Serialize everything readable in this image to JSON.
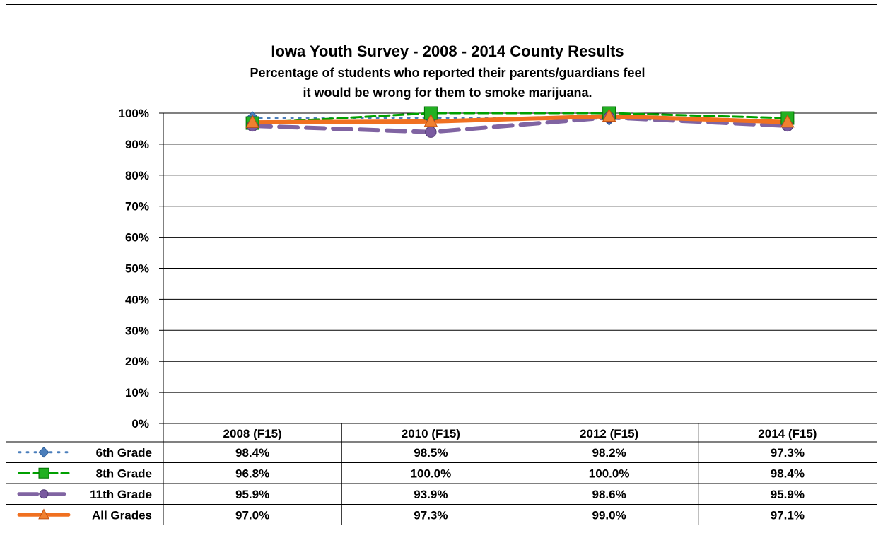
{
  "chart_data": {
    "type": "line",
    "title": "Iowa Youth Survey - 2008 - 2014 County Results",
    "subtitle_line1": "Percentage of students who reported their parents/guardians feel",
    "subtitle_line2": "it would be wrong for them to smoke marijuana.",
    "categories": [
      "2008 (F15)",
      "2010 (F15)",
      "2012 (F15)",
      "2014 (F15)"
    ],
    "y_ticks": [
      "0%",
      "10%",
      "20%",
      "30%",
      "40%",
      "50%",
      "60%",
      "70%",
      "80%",
      "90%",
      "100%"
    ],
    "ylim": [
      0,
      100
    ],
    "grid": true,
    "legend": "data-table",
    "series": [
      {
        "name": "6th Grade",
        "values": [
          98.4,
          98.5,
          98.2,
          97.3
        ],
        "labels": [
          "98.4%",
          "98.5%",
          "98.2%",
          "97.3%"
        ],
        "color": "#4a7ebb",
        "dash": "2,9",
        "width": 3,
        "marker": "diamond"
      },
      {
        "name": "8th Grade",
        "values": [
          96.8,
          100.0,
          100.0,
          98.4
        ],
        "labels": [
          "96.8%",
          "100.0%",
          "100.0%",
          "98.4%"
        ],
        "color": "#00a000",
        "dash": "14,6",
        "width": 3,
        "marker": "square"
      },
      {
        "name": "11th Grade",
        "values": [
          95.9,
          93.9,
          98.6,
          95.9
        ],
        "labels": [
          "95.9%",
          "93.9%",
          "98.6%",
          "95.9%"
        ],
        "color": "#8064a2",
        "dash": "26,12",
        "width": 6,
        "marker": "circle"
      },
      {
        "name": "All Grades",
        "values": [
          97.0,
          97.3,
          99.0,
          97.1
        ],
        "labels": [
          "97.0%",
          "97.3%",
          "99.0%",
          "97.1%"
        ],
        "color": "#f07020",
        "dash": "",
        "width": 6,
        "marker": "triangle"
      }
    ]
  }
}
